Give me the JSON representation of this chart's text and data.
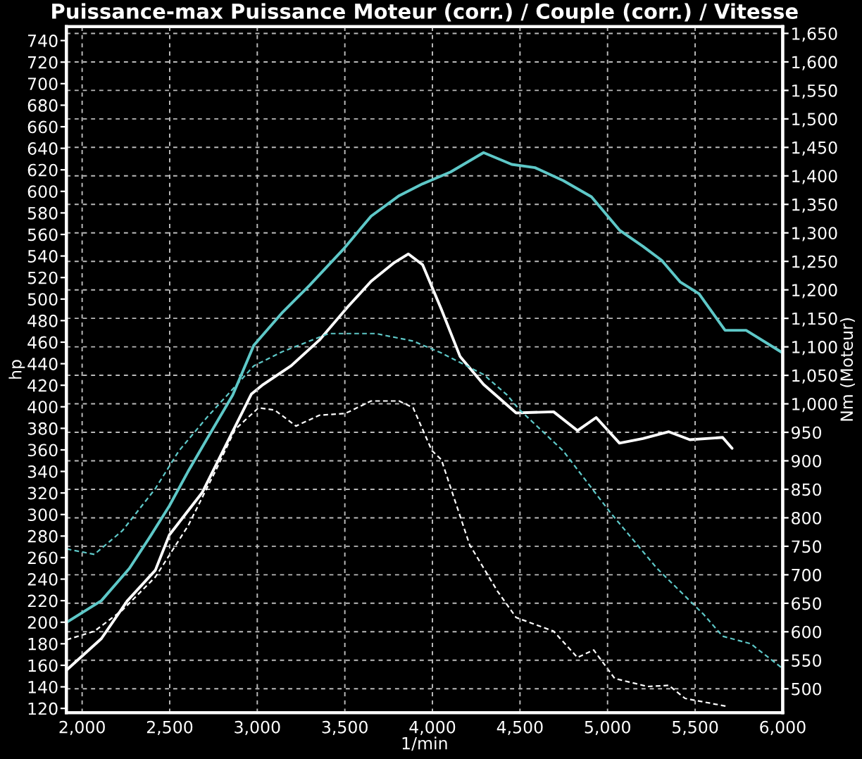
{
  "chart_data": {
    "type": "line",
    "title": "Puissance-max Puissance Moteur (corr.) / Couple (corr.) / Vitesse",
    "xlabel": "1/min",
    "ylabel": "hp",
    "y2label": "Nm (Moteur)",
    "xlim": [
      1910,
      6000
    ],
    "xticks": [
      {
        "value": 2000,
        "label": "2,000"
      },
      {
        "value": 2500,
        "label": "2,500"
      },
      {
        "value": 3000,
        "label": "3,000"
      },
      {
        "value": 3500,
        "label": "3,500"
      },
      {
        "value": 4000,
        "label": "4,000"
      },
      {
        "value": 4500,
        "label": "4,500"
      },
      {
        "value": 5000,
        "label": "5,000"
      },
      {
        "value": 5500,
        "label": "5,500"
      },
      {
        "value": 6000,
        "label": "6,000"
      }
    ],
    "ylim": [
      116,
      753
    ],
    "yticks": [
      120,
      140,
      160,
      180,
      200,
      220,
      240,
      260,
      280,
      300,
      320,
      340,
      360,
      380,
      400,
      420,
      440,
      460,
      480,
      500,
      520,
      540,
      560,
      580,
      600,
      620,
      640,
      660,
      680,
      700,
      720,
      740
    ],
    "y2lim": [
      458,
      1662
    ],
    "y2ticks": [
      500,
      550,
      600,
      650,
      700,
      750,
      800,
      850,
      900,
      950,
      {
        "value": 1000,
        "label": "1,000"
      },
      {
        "value": 1050,
        "label": "1,050"
      },
      {
        "value": 1100,
        "label": "1,100"
      },
      {
        "value": 1150,
        "label": "1,150"
      },
      {
        "value": 1200,
        "label": "1,200"
      },
      {
        "value": 1250,
        "label": "1,250"
      },
      {
        "value": 1300,
        "label": "1,300"
      },
      {
        "value": 1350,
        "label": "1,350"
      },
      {
        "value": 1400,
        "label": "1,400"
      },
      {
        "value": 1450,
        "label": "1,450"
      },
      {
        "value": 1500,
        "label": "1,500"
      },
      {
        "value": 1550,
        "label": "1,550"
      },
      {
        "value": 1600,
        "label": "1,600"
      },
      {
        "value": 1650,
        "label": "1,650"
      }
    ],
    "grid": true,
    "legend": false,
    "marker": "none",
    "series": [
      {
        "color": "#5ec8c8",
        "line_style": "solid",
        "x": [
          1912,
          2110,
          2270,
          2390,
          2498,
          2605,
          2712,
          2860,
          2980,
          3140,
          3300,
          3490,
          3650,
          3810,
          3944,
          4104,
          4292,
          4453,
          4586,
          4747,
          4908,
          5068,
          5202,
          5309,
          5414,
          5522,
          5671,
          5791,
          6000
        ],
        "values": [
          200,
          220,
          250,
          280,
          308,
          340,
          370,
          411,
          457,
          487,
          513,
          546,
          577,
          596,
          607,
          618,
          636,
          625,
          622,
          610,
          595,
          564,
          549,
          536,
          516,
          505,
          471,
          471,
          450
        ]
      },
      {
        "color": "#ffffff",
        "line_style": "solid",
        "axis": "y2",
        "x": [
          1912,
          2110,
          2257,
          2418,
          2498,
          2685,
          2846,
          2966,
          3034,
          3194,
          3355,
          3516,
          3650,
          3783,
          3863,
          3944,
          4051,
          4158,
          4292,
          4478,
          4692,
          4828,
          4935,
          5068,
          5202,
          5350,
          5470,
          5657,
          5711
        ],
        "values": [
          533,
          588,
          654,
          708,
          770,
          844,
          943,
          1017,
          1034,
          1067,
          1112,
          1170,
          1215,
          1248,
          1263,
          1244,
          1166,
          1083,
          1034,
          984,
          986,
          953,
          976,
          931,
          939,
          951,
          937,
          941,
          922
        ]
      },
      {
        "color": "#5ec8c8",
        "line_style": "dashed",
        "x": [
          1912,
          2070,
          2230,
          2418,
          2552,
          2712,
          2980,
          3141,
          3408,
          3677,
          3890,
          4051,
          4292,
          4426,
          4493,
          4747,
          5015,
          5282,
          5550,
          5657,
          5818,
          6000
        ],
        "values": [
          268,
          263,
          285,
          324,
          359,
          390,
          438,
          451,
          468,
          468,
          461,
          450,
          430,
          411,
          398,
          359,
          302,
          250,
          207,
          187,
          180,
          157
        ]
      },
      {
        "color": "#ffffff",
        "line_style": "dashed",
        "axis": "y2",
        "x": [
          1912,
          2070,
          2230,
          2418,
          2605,
          2766,
          2873,
          3007,
          3100,
          3221,
          3355,
          3502,
          3650,
          3810,
          3890,
          3997,
          4051,
          4212,
          4372,
          4478,
          4692,
          4828,
          4921,
          5041,
          5229,
          5350,
          5443,
          5684
        ],
        "values": [
          586,
          601,
          638,
          696,
          786,
          885,
          955,
          993,
          989,
          961,
          980,
          983,
          1005,
          1005,
          993,
          918,
          902,
          753,
          671,
          625,
          601,
          555,
          568,
          518,
          504,
          506,
          483,
          469
        ]
      }
    ]
  }
}
